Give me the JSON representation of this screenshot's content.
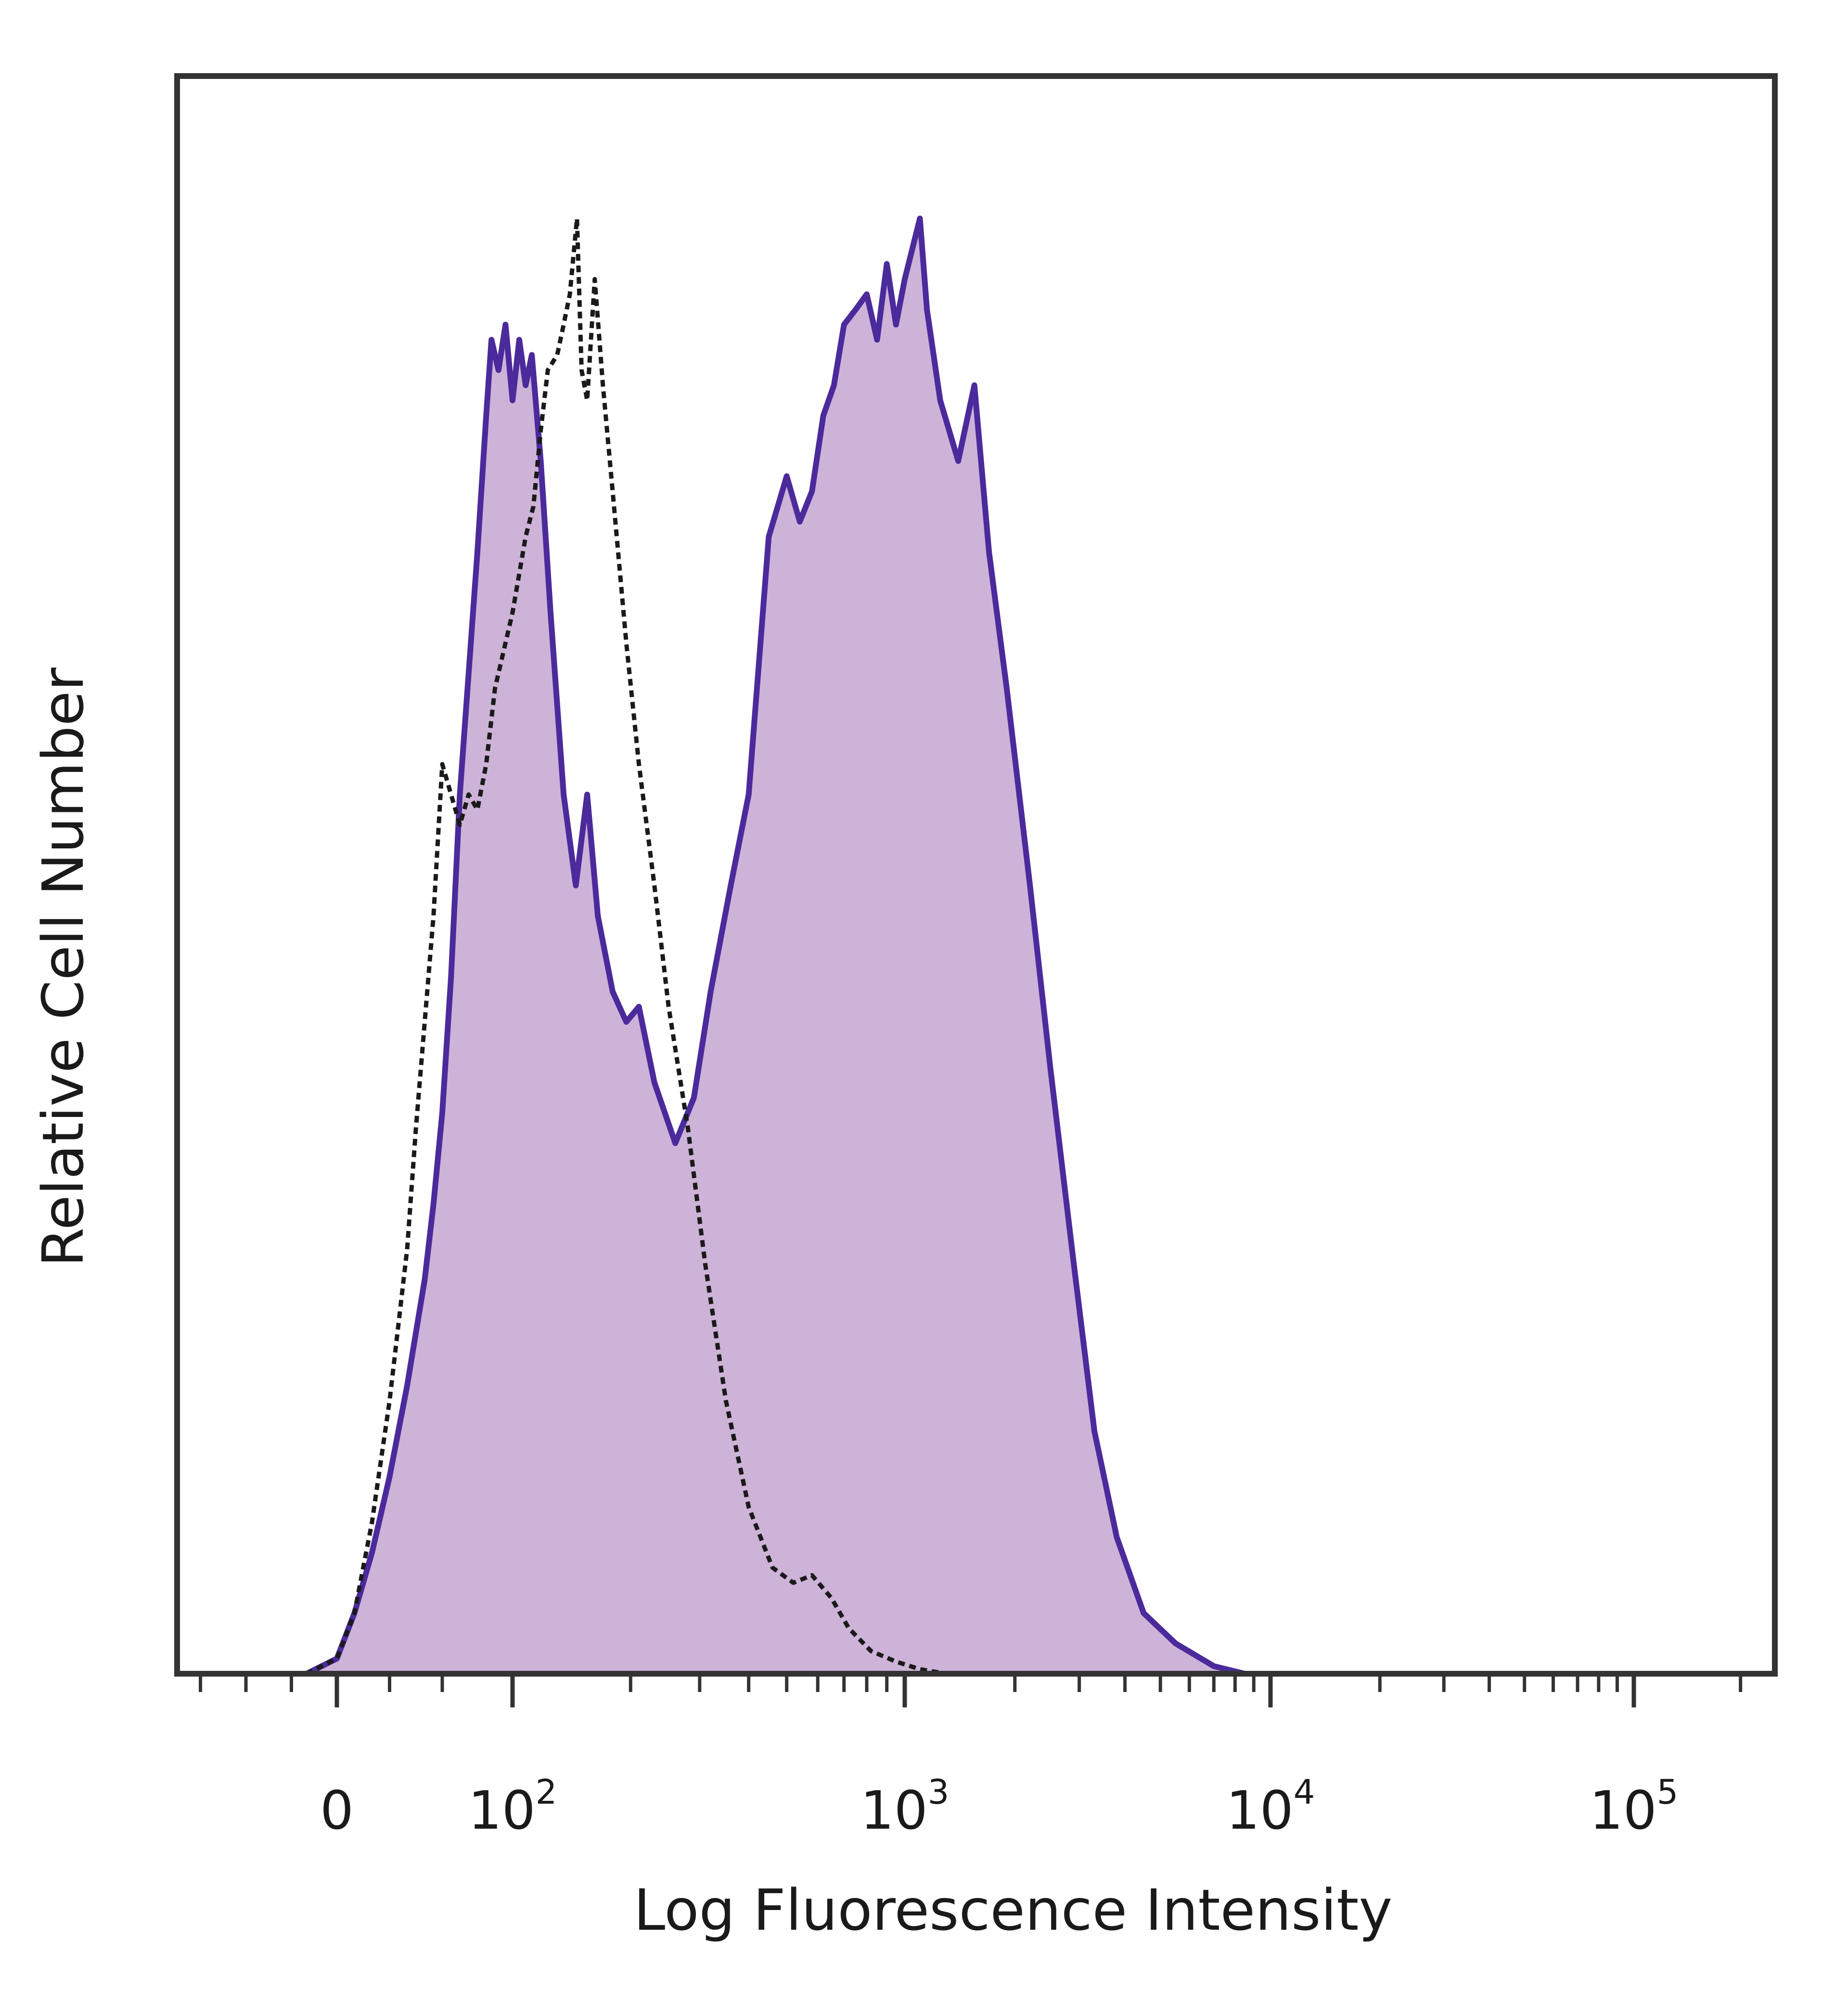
{
  "chart_data": {
    "type": "area",
    "title": "",
    "xlabel": "Log Fluorescence Intensity",
    "ylabel": "Relative Cell Number",
    "x_scale": "biexponential",
    "xlim": [
      -100,
      250000
    ],
    "ylim": [
      0,
      100
    ],
    "grid": false,
    "legend": "none",
    "x_ticks": [
      {
        "value": 0,
        "base": "0",
        "exp": ""
      },
      {
        "value": 100,
        "base": "10",
        "exp": "2"
      },
      {
        "value": 1000,
        "base": "10",
        "exp": "3"
      },
      {
        "value": 10000,
        "base": "10",
        "exp": "4"
      },
      {
        "value": 100000,
        "base": "10",
        "exp": "5"
      }
    ],
    "colors": {
      "stained_fill": "#cdb3d8",
      "stained_line": "#4b2a9c",
      "control_line": "#1a1a1a",
      "frame": "#333333"
    },
    "series": [
      {
        "style": "filled-solid",
        "color": "#4b2a9c",
        "points": [
          [
            -20,
            0
          ],
          [
            0,
            1
          ],
          [
            10,
            4
          ],
          [
            20,
            8
          ],
          [
            30,
            13
          ],
          [
            40,
            19
          ],
          [
            50,
            26
          ],
          [
            55,
            31
          ],
          [
            60,
            37
          ],
          [
            65,
            46
          ],
          [
            70,
            58
          ],
          [
            75,
            66
          ],
          [
            80,
            74
          ],
          [
            85,
            83
          ],
          [
            88,
            88
          ],
          [
            92,
            86
          ],
          [
            96,
            89
          ],
          [
            100,
            84
          ],
          [
            104,
            88
          ],
          [
            108,
            85
          ],
          [
            112,
            87
          ],
          [
            118,
            80
          ],
          [
            125,
            70
          ],
          [
            135,
            58
          ],
          [
            145,
            52
          ],
          [
            155,
            58
          ],
          [
            165,
            50
          ],
          [
            180,
            45
          ],
          [
            195,
            43
          ],
          [
            210,
            44
          ],
          [
            230,
            39
          ],
          [
            260,
            35
          ],
          [
            290,
            38
          ],
          [
            320,
            45
          ],
          [
            360,
            52
          ],
          [
            400,
            58
          ],
          [
            450,
            75
          ],
          [
            500,
            79
          ],
          [
            540,
            76
          ],
          [
            580,
            78
          ],
          [
            620,
            83
          ],
          [
            660,
            85
          ],
          [
            700,
            89
          ],
          [
            750,
            90
          ],
          [
            800,
            91
          ],
          [
            850,
            88
          ],
          [
            900,
            93
          ],
          [
            950,
            89
          ],
          [
            1000,
            92
          ],
          [
            1100,
            96
          ],
          [
            1150,
            90
          ],
          [
            1250,
            84
          ],
          [
            1400,
            80
          ],
          [
            1550,
            85
          ],
          [
            1700,
            74
          ],
          [
            1900,
            65
          ],
          [
            2200,
            52
          ],
          [
            2500,
            40
          ],
          [
            2900,
            27
          ],
          [
            3300,
            16
          ],
          [
            3800,
            9
          ],
          [
            4500,
            4
          ],
          [
            5500,
            2
          ],
          [
            7000,
            0.5
          ],
          [
            8500,
            0
          ]
        ]
      },
      {
        "style": "dashed",
        "color": "#1a1a1a",
        "points": [
          [
            -20,
            0
          ],
          [
            0,
            1
          ],
          [
            10,
            4
          ],
          [
            20,
            10
          ],
          [
            30,
            18
          ],
          [
            40,
            28
          ],
          [
            45,
            36
          ],
          [
            50,
            43
          ],
          [
            55,
            50
          ],
          [
            60,
            60
          ],
          [
            65,
            58
          ],
          [
            70,
            56
          ],
          [
            75,
            58
          ],
          [
            80,
            57
          ],
          [
            85,
            60
          ],
          [
            90,
            65
          ],
          [
            100,
            70
          ],
          [
            108,
            75
          ],
          [
            113,
            77
          ],
          [
            118,
            82
          ],
          [
            123,
            86
          ],
          [
            130,
            87
          ],
          [
            135,
            89
          ],
          [
            140,
            91
          ],
          [
            146,
            96
          ],
          [
            150,
            86
          ],
          [
            155,
            84
          ],
          [
            162,
            92
          ],
          [
            170,
            85
          ],
          [
            180,
            78
          ],
          [
            195,
            68
          ],
          [
            210,
            60
          ],
          [
            230,
            52
          ],
          [
            250,
            44
          ],
          [
            280,
            36
          ],
          [
            310,
            27
          ],
          [
            350,
            18
          ],
          [
            400,
            11
          ],
          [
            460,
            7
          ],
          [
            520,
            6
          ],
          [
            580,
            6.5
          ],
          [
            650,
            5
          ],
          [
            720,
            3
          ],
          [
            820,
            1.5
          ],
          [
            950,
            0.8
          ],
          [
            1100,
            0.3
          ],
          [
            1300,
            0
          ]
        ]
      }
    ]
  }
}
